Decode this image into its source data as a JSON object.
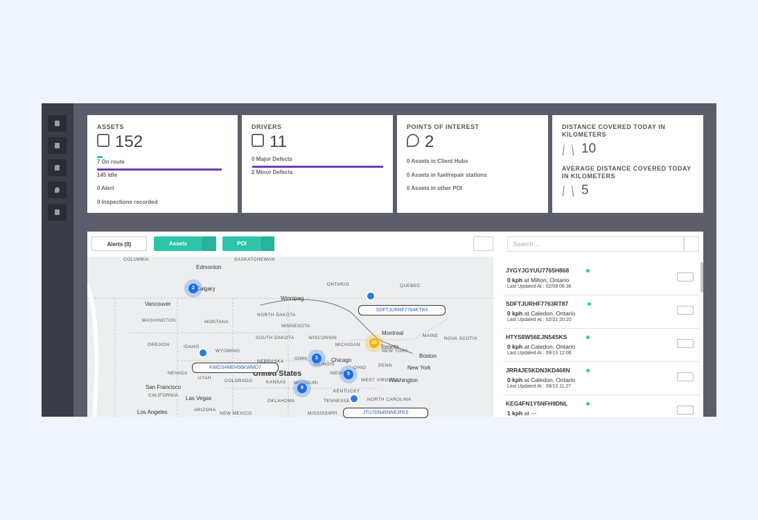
{
  "stats": [
    {
      "title": "ASSETS",
      "value": 152,
      "lines": [
        "7 On route",
        "145 Idle",
        "0 Alert",
        "0 Inspections recorded"
      ]
    },
    {
      "title": "DRIVERS",
      "value": 11,
      "lines": [
        "0 Major Defects",
        "2 Minor Defects"
      ]
    },
    {
      "title": "POINTS OF INTEREST",
      "value": 2,
      "lines": [
        "0 Assets in Client Hubs",
        "0 Assets in fuel/repair stations",
        "0 Assets in other POI"
      ]
    }
  ],
  "distance": {
    "title": "DISTANCE COVERED TODAY IN KILOMETERS",
    "value": 10,
    "avg_title": "AVERAGE DISTANCE COVERED TODAY IN KILOMETERS",
    "avg_value": 5
  },
  "toolbar": {
    "alerts": "Alerts (0)",
    "assets": "Assets",
    "poi": "POI",
    "search_placeholder": "Search ..."
  },
  "map": {
    "labels": [
      "COLUMBIA",
      "SASKATCHEWAN",
      "Edmonton",
      "Calgary",
      "ONTARIO",
      "QUEBEC",
      "Vancouver",
      "Winnipeg",
      "WASHINGTON",
      "MONTANA",
      "NORTH DAKOTA",
      "MINNESOTA",
      "Montreal",
      "MAINE",
      "NOVA SCOTIA",
      "OREGON",
      "IDAHO",
      "WYOMING",
      "SOUTH DAKOTA",
      "WISCONSIN",
      "MICHIGAN",
      "Toronto",
      "NEW YORK",
      "NEBRASKA",
      "IOWA",
      "Chicago",
      "Boston",
      "New York",
      "PENN",
      "OHIO",
      "NEVADA",
      "UTAH",
      "COLORADO",
      "United States",
      "KANSAS",
      "ILLINOIS",
      "INDIANA",
      "Washington",
      "WEST VIRGINIA",
      "San Francisco",
      "MISSOURI",
      "KENTUCKY",
      "CALIFORNIA",
      "Las Vegas",
      "OKLAHOMA",
      "TENNESSEE",
      "NORTH CAROLINA",
      "ARIZONA",
      "Los Angeles",
      "NEW MEXICO",
      "MISSISSIPPI"
    ],
    "clusters": [
      2,
      2,
      15,
      5,
      9
    ],
    "asset_tags": [
      "SDFTJURHF7764KTR4",
      "KWGS4MEH56KWMD7",
      "JTU7DN45NNEJFK5"
    ]
  },
  "assets": [
    {
      "id": "JYGYJGYUU7765H868",
      "speed": "0 kph",
      "location": "at Milton, Ontario",
      "updated": "Last Updated At : 02/09 06:36"
    },
    {
      "id": "SDFTJURHF7763RT87",
      "speed": "0 kph",
      "location": "at Caledon, Ontario",
      "updated": "Last Updated At : 02/22 20:20"
    },
    {
      "id": "HTYS8W56EJN54SKS",
      "speed": "0 kph",
      "location": "at Caledon, Ontario",
      "updated": "Last Updated At : 09/13 12:06"
    },
    {
      "id": "JRR4JE5KDN3KD468N",
      "speed": "0 kph",
      "location": "at Caledon, Ontario",
      "updated": "Last Updated At : 09/13 11:27"
    },
    {
      "id": "KEG4FN1Y5NFH9DNL",
      "speed": "1 kph",
      "location": "at ---"
    }
  ]
}
